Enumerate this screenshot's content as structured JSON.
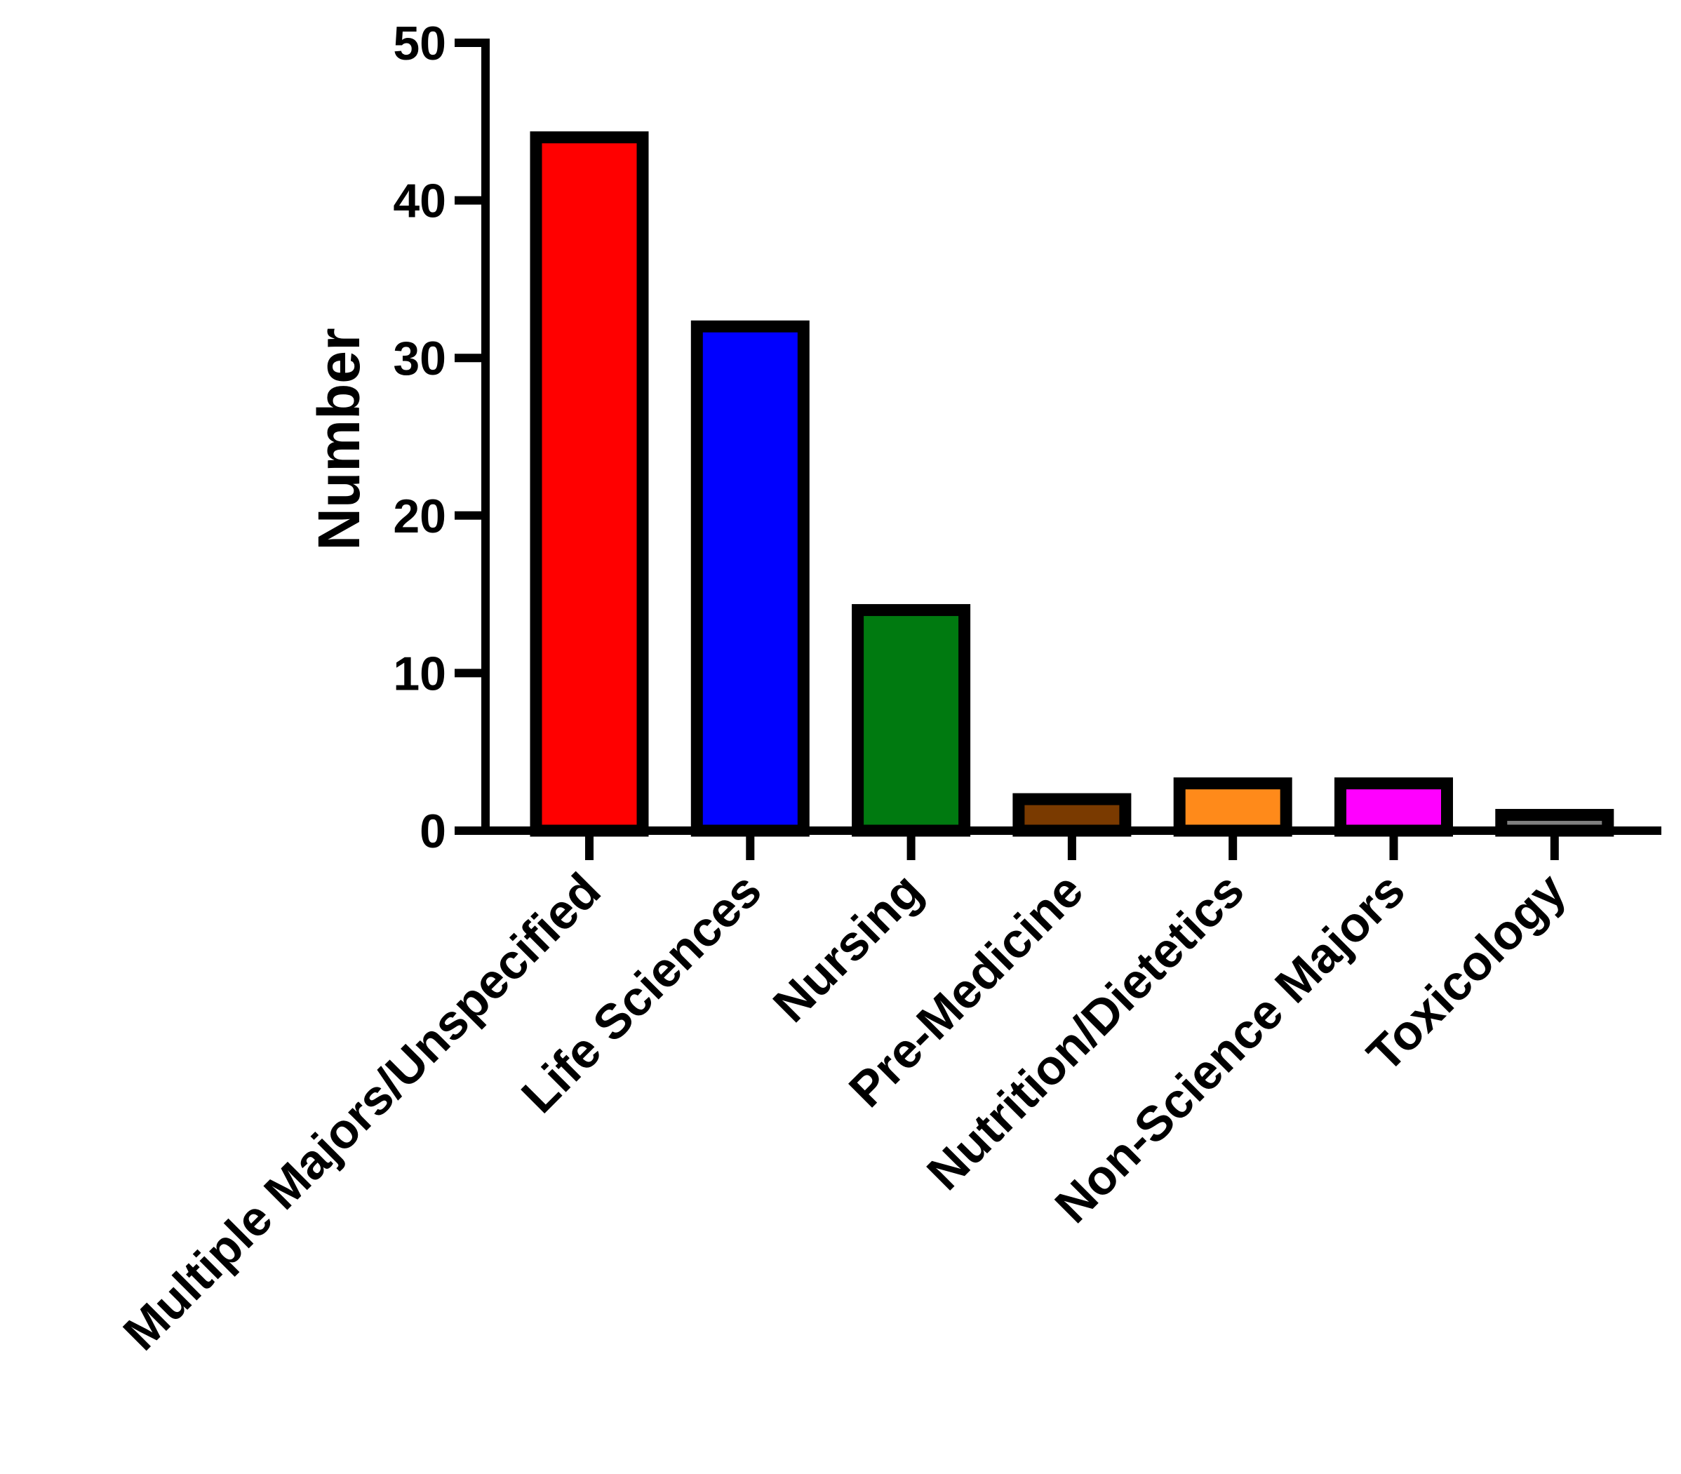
{
  "chart_data": {
    "type": "bar",
    "y_label": "Number",
    "categories": [
      "Multiple Majors/Unspecified",
      "Life Sciences",
      "Nursing",
      "Pre-Medicine",
      "Nutrition/Dietetics",
      "Non-Science Majors",
      "Toxicology"
    ],
    "values": [
      44,
      32,
      14,
      2,
      3,
      3,
      1
    ],
    "colors": [
      "#ff0000",
      "#0000ff",
      "#007a10",
      "#7a3a00",
      "#ff8a1a",
      "#ff00ff",
      "#808080"
    ],
    "ylim": [
      0,
      50
    ],
    "yticks": [
      0,
      10,
      20,
      30,
      40,
      50
    ],
    "grid": false
  }
}
